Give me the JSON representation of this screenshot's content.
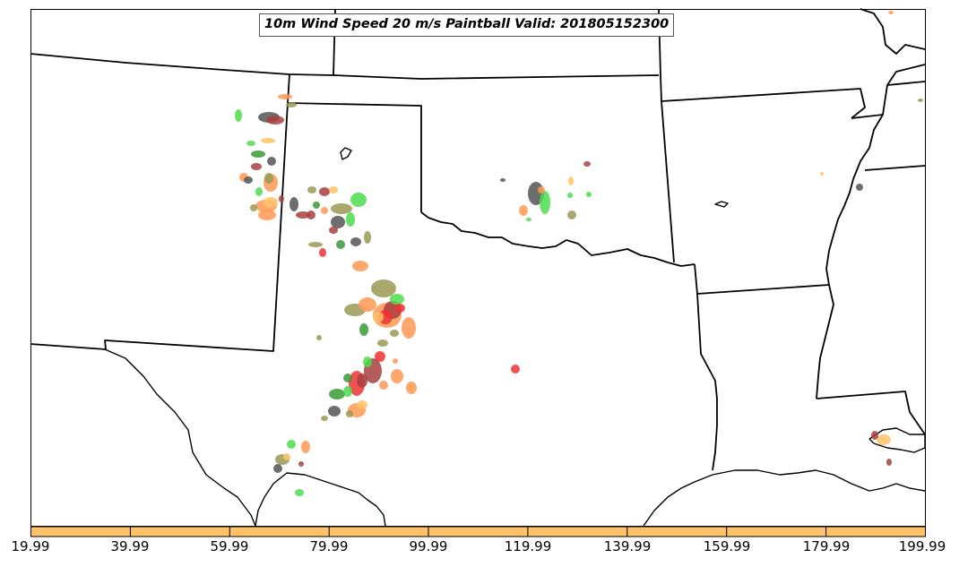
{
  "title": "10m Wind Speed 20 m/s Paintball Valid: 201805152300",
  "colorbar": {
    "color": "#ffc266",
    "ticks": [
      "19.99",
      "39.99",
      "59.99",
      "79.99",
      "99.99",
      "119.99",
      "139.99",
      "159.99",
      "179.99",
      "199.99"
    ]
  },
  "colors": {
    "light_green": "#4cdc4c",
    "dark_green": "#3a9a3a",
    "olive": "#9a9a55",
    "orange": "#ff9955",
    "light_orange": "#ffc266",
    "red": "#ee3333",
    "dark_red": "#a84040",
    "dark_gray": "#555555"
  }
}
